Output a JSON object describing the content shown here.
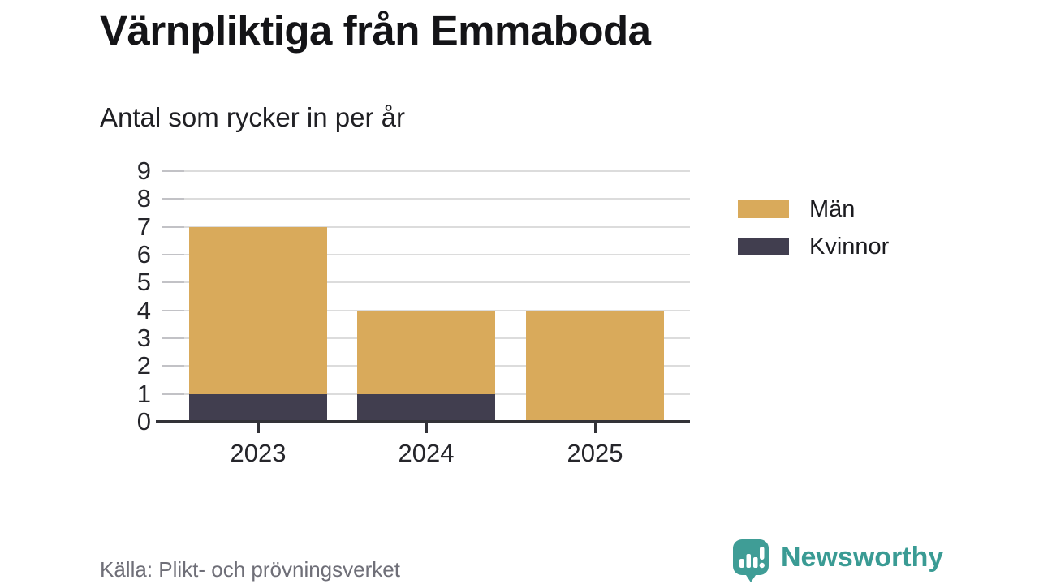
{
  "title": "Värnpliktiga från Emmaboda",
  "subtitle": "Antal som rycker in per år",
  "source": "Källa: Plikt- och prövningsverket",
  "brand": {
    "name": "Newsworthy",
    "color": "#3a9b94"
  },
  "colors": {
    "men": "#d9aa5b",
    "women": "#413e4f",
    "axis": "#333338",
    "grid": "#dcdcdc",
    "background": "#ffffff"
  },
  "legend": [
    {
      "label": "Män",
      "color": "#d9aa5b"
    },
    {
      "label": "Kvinnor",
      "color": "#413e4f"
    }
  ],
  "chart_data": {
    "type": "bar",
    "stacked": true,
    "title": "Värnpliktiga från Emmaboda",
    "subtitle": "Antal som rycker in per år",
    "categories": [
      "2023",
      "2024",
      "2025"
    ],
    "series": [
      {
        "name": "Kvinnor",
        "values": [
          1,
          1,
          0
        ],
        "color": "#413e4f"
      },
      {
        "name": "Män",
        "values": [
          6,
          3,
          4
        ],
        "color": "#d9aa5b"
      }
    ],
    "totals": [
      7,
      4,
      4
    ],
    "xlabel": "",
    "ylabel": "",
    "ylim": [
      0,
      9
    ],
    "yticks": [
      0,
      1,
      2,
      3,
      4,
      5,
      6,
      7,
      8,
      9
    ],
    "grid": true,
    "legend_position": "right",
    "source": "Källa: Plikt- och prövningsverket"
  }
}
